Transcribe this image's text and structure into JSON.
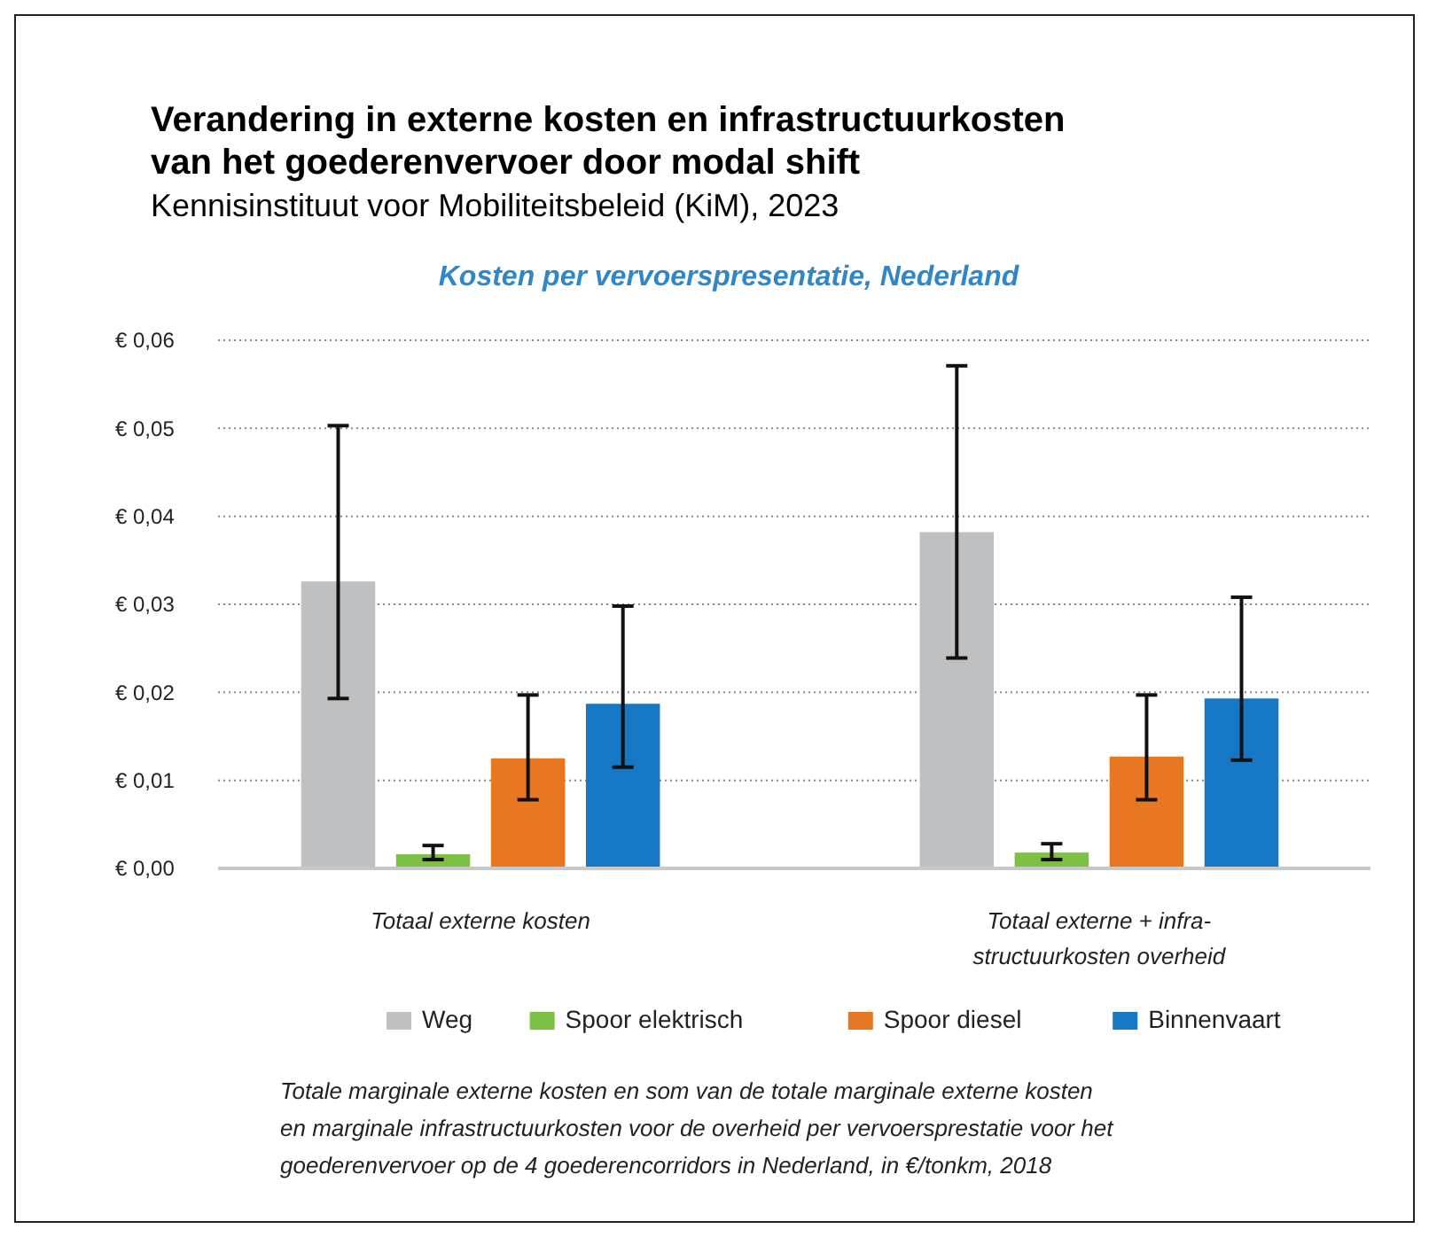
{
  "chart_data": {
    "type": "bar",
    "title": "Verandering in externe kosten en infrastructuurkosten\nvan het goederenvervoer door modal shift",
    "subtitle": "Kennisinstituut voor Mobiliteitsbeleid (KiM), 2023",
    "annotations": [
      "Kosten per vervoerspresentatie, Nederland",
      "Totale marginale externe kosten en som van de totale marginale externe kosten\nen marginale infrastructuurkosten voor de overheid per vervoersprestatie voor het\ngoederenvervoer op de 4 goederencorridors in Nederland, in €/tonkm, 2018"
    ],
    "categories": [
      "Totaal externe kosten",
      "Totaal externe + infra-\nstructuurkosten overheid"
    ],
    "series": [
      {
        "name": "Weg",
        "color": "#bfc0c2",
        "values": [
          0.0326,
          0.0382
        ],
        "errors": [
          [
            0.0193,
            0.0503
          ],
          [
            0.0239,
            0.0571
          ]
        ]
      },
      {
        "name": "Spoor elektrisch",
        "color": "#7cc142",
        "values": [
          0.0016,
          0.0018
        ],
        "errors": [
          [
            0.001,
            0.0026
          ],
          [
            0.001,
            0.0028
          ]
        ]
      },
      {
        "name": "Spoor diesel",
        "color": "#e87722",
        "values": [
          0.0125,
          0.0127
        ],
        "errors": [
          [
            0.0078,
            0.0197
          ],
          [
            0.0078,
            0.0197
          ]
        ]
      },
      {
        "name": "Binnenvaart",
        "color": "#1677c4",
        "values": [
          0.0187,
          0.0193
        ],
        "errors": [
          [
            0.0115,
            0.0298
          ],
          [
            0.0123,
            0.0308
          ]
        ]
      }
    ],
    "ylim": [
      0,
      0.06
    ],
    "yticks": [
      {
        "value": 0,
        "label": "€ 0,00"
      },
      {
        "value": 0.01,
        "label": "€ 0,01"
      },
      {
        "value": 0.02,
        "label": "€ 0,02"
      },
      {
        "value": 0.03,
        "label": "€ 0,03"
      },
      {
        "value": 0.04,
        "label": "€ 0,04"
      },
      {
        "value": 0.05,
        "label": "€ 0,05"
      },
      {
        "value": 0.06,
        "label": "€ 0,06"
      }
    ],
    "grid": "y",
    "legend": "bottom"
  }
}
